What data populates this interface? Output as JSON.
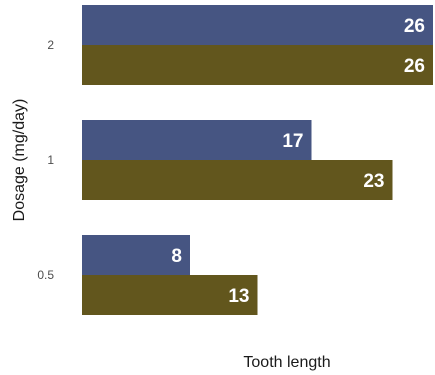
{
  "chart_data": {
    "type": "bar",
    "orientation": "horizontal",
    "categories": [
      "2",
      "1",
      "0.5"
    ],
    "series": [
      {
        "values": [
          26,
          17,
          8
        ],
        "color": "#465582"
      },
      {
        "values": [
          26,
          23,
          13
        ],
        "color": "#62561d"
      }
    ],
    "xlabel": "Tooth length",
    "ylabel": "Dosage (mg/day)",
    "xlim": [
      0,
      26
    ],
    "grid": false,
    "legend": "none"
  }
}
